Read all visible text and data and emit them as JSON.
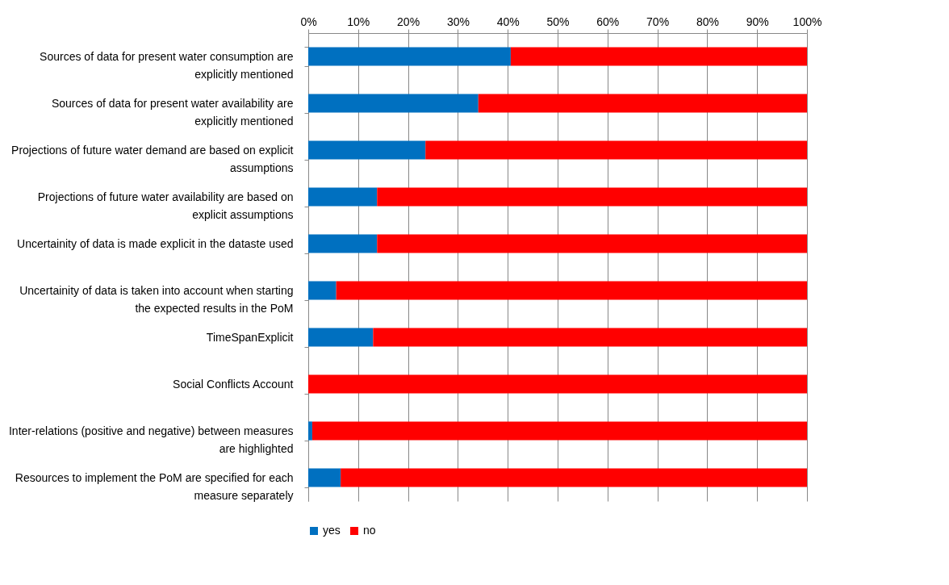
{
  "chart_data": {
    "type": "bar",
    "orientation": "horizontal",
    "stacked": true,
    "categories": [
      "Sources of data for present water consumption are explicitly mentioned",
      "Sources of data for present water availability are explicitly mentioned",
      "Projections of future water demand are based on explicit assumptions",
      "Projections of future water availability are based on explicit assumptions",
      "Uncertainity of data is made explicit in the dataste used",
      "Uncertainity of data is taken into account when starting the expected results in the PoM",
      "TimeSpanExplicit",
      "Social Conflicts Account",
      "Inter-relations (positive and negative) between measures are highlighted",
      "Resources to implement the PoM are specified for each measure separately"
    ],
    "series": [
      {
        "name": "yes",
        "color": "#0070c0",
        "values": [
          40.6,
          34.1,
          23.5,
          13.8,
          13.8,
          5.6,
          13.0,
          0,
          0.8,
          6.5
        ]
      },
      {
        "name": "no",
        "color": "#ff0000",
        "values": [
          59.4,
          65.9,
          76.5,
          86.2,
          86.2,
          94.4,
          87.0,
          100,
          99.2,
          93.5
        ]
      }
    ],
    "xlim": [
      0,
      100
    ],
    "xticks": [
      {
        "value": 0,
        "label": "0%"
      },
      {
        "value": 10,
        "label": "10%"
      },
      {
        "value": 20,
        "label": "20%"
      },
      {
        "value": 30,
        "label": "30%"
      },
      {
        "value": 40,
        "label": "40%"
      },
      {
        "value": 50,
        "label": "50%"
      },
      {
        "value": 60,
        "label": "60%"
      },
      {
        "value": 70,
        "label": "70%"
      },
      {
        "value": 80,
        "label": "80%"
      },
      {
        "value": 90,
        "label": "90%"
      },
      {
        "value": 100,
        "label": "100%"
      }
    ],
    "grid": "x",
    "legend": "bottom"
  }
}
